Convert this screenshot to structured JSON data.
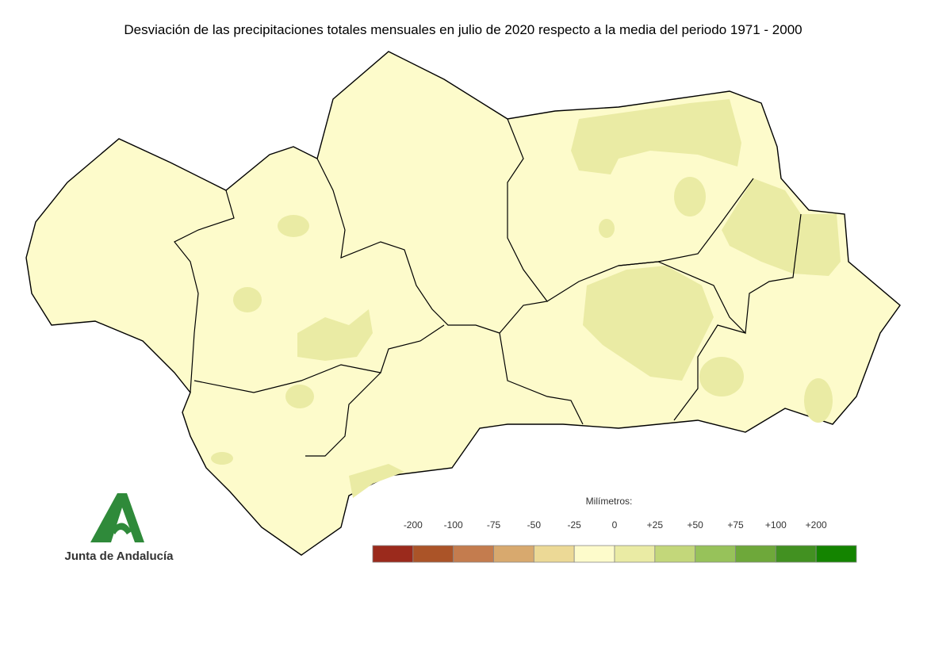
{
  "title": "Desviación de las precipitaciones totales mensuales en julio de 2020 respecto a la media del periodo 1971 - 2000",
  "legend": {
    "title": "Milímetros:",
    "labels": [
      "-200",
      "-100",
      "-75",
      "-50",
      "-25",
      "0",
      "+25",
      "+50",
      "+75",
      "+100",
      "+200"
    ],
    "colors": [
      "#9b2a1c",
      "#ab5428",
      "#c47c4e",
      "#d8a96e",
      "#ecd996",
      "#fdfbcb",
      "#eaeba4",
      "#c3d77a",
      "#97c25a",
      "#6ea83a",
      "#429121",
      "#148400"
    ]
  },
  "logo": {
    "text": "Junta de Andalucía"
  }
}
